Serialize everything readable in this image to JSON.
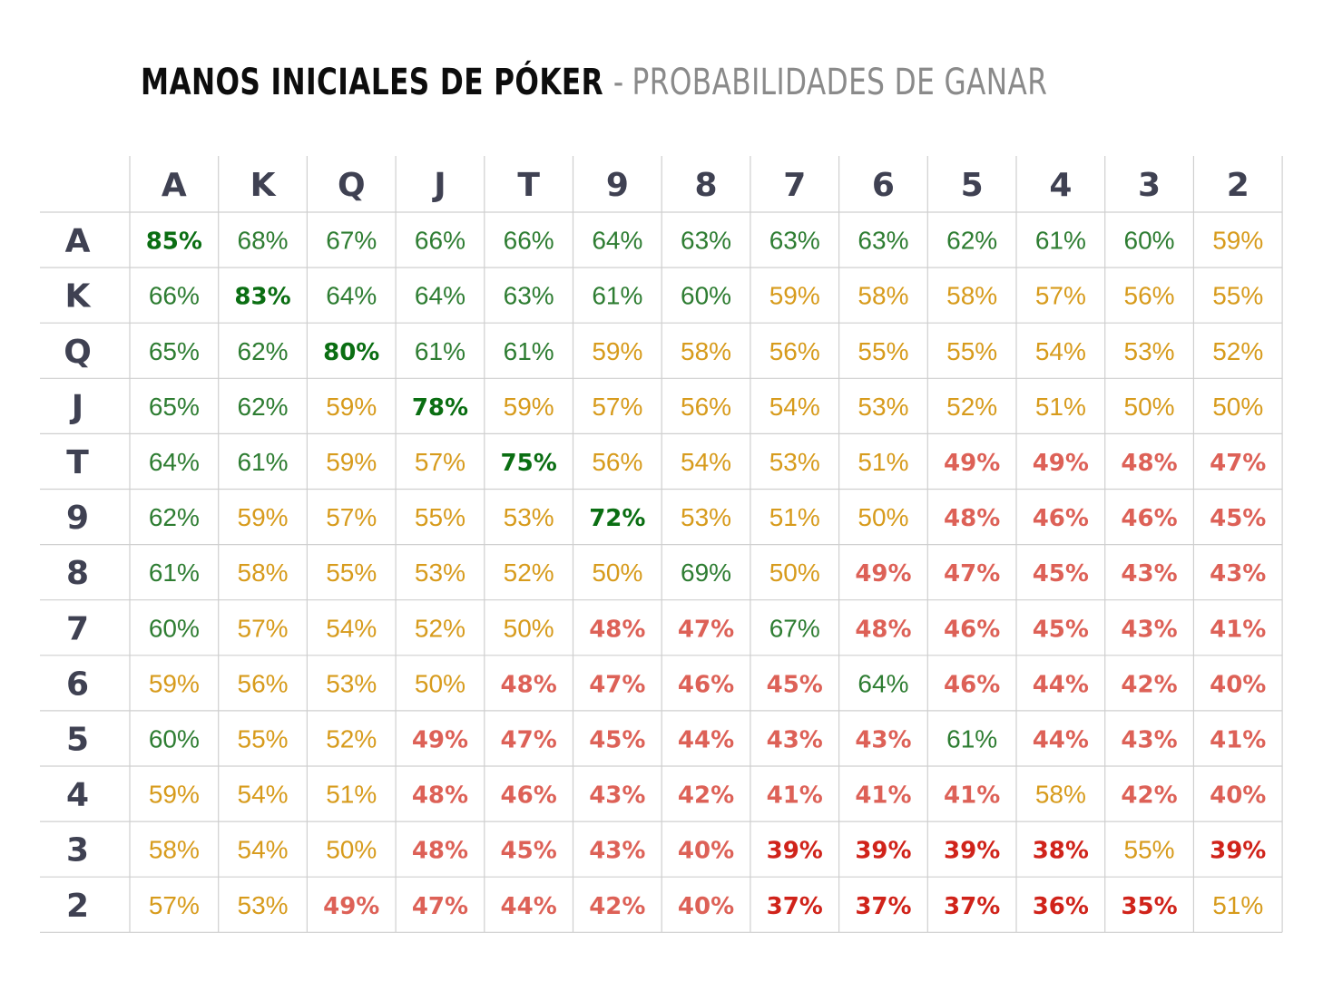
{
  "title": {
    "main": "MANOS INICIALES DE PÓKER",
    "separator": "-",
    "sub": "PROBABILIDADES DE GANAR"
  },
  "colors": {
    "header_text": "#3f4152",
    "grid": "#cfcfcf",
    "green": "#2e7d32",
    "dark_green": "#0a6e12",
    "yellow": "#d79b1c",
    "red": "#dd6157",
    "dark_red": "#d0231a"
  },
  "chart_data": {
    "type": "table",
    "columns": [
      "A",
      "K",
      "Q",
      "J",
      "T",
      "9",
      "8",
      "7",
      "6",
      "5",
      "4",
      "3",
      "2"
    ],
    "rows": [
      "A",
      "K",
      "Q",
      "J",
      "T",
      "9",
      "8",
      "7",
      "6",
      "5",
      "4",
      "3",
      "2"
    ],
    "values": [
      [
        "85%",
        "68%",
        "67%",
        "66%",
        "66%",
        "64%",
        "63%",
        "63%",
        "63%",
        "62%",
        "61%",
        "60%",
        "59%"
      ],
      [
        "66%",
        "83%",
        "64%",
        "64%",
        "63%",
        "61%",
        "60%",
        "59%",
        "58%",
        "58%",
        "57%",
        "56%",
        "55%"
      ],
      [
        "65%",
        "62%",
        "80%",
        "61%",
        "61%",
        "59%",
        "58%",
        "56%",
        "55%",
        "55%",
        "54%",
        "53%",
        "52%"
      ],
      [
        "65%",
        "62%",
        "59%",
        "78%",
        "59%",
        "57%",
        "56%",
        "54%",
        "53%",
        "52%",
        "51%",
        "50%",
        "50%"
      ],
      [
        "64%",
        "61%",
        "59%",
        "57%",
        "75%",
        "56%",
        "54%",
        "53%",
        "51%",
        "49%",
        "49%",
        "48%",
        "47%"
      ],
      [
        "62%",
        "59%",
        "57%",
        "55%",
        "53%",
        "72%",
        "53%",
        "51%",
        "50%",
        "48%",
        "46%",
        "46%",
        "45%"
      ],
      [
        "61%",
        "58%",
        "55%",
        "53%",
        "52%",
        "50%",
        "69%",
        "50%",
        "49%",
        "47%",
        "45%",
        "43%",
        "43%"
      ],
      [
        "60%",
        "57%",
        "54%",
        "52%",
        "50%",
        "48%",
        "47%",
        "67%",
        "48%",
        "46%",
        "45%",
        "43%",
        "41%"
      ],
      [
        "59%",
        "56%",
        "53%",
        "50%",
        "48%",
        "47%",
        "46%",
        "45%",
        "64%",
        "46%",
        "44%",
        "42%",
        "40%"
      ],
      [
        "60%",
        "55%",
        "52%",
        "49%",
        "47%",
        "45%",
        "44%",
        "43%",
        "43%",
        "61%",
        "44%",
        "43%",
        "41%"
      ],
      [
        "59%",
        "54%",
        "51%",
        "48%",
        "46%",
        "43%",
        "42%",
        "41%",
        "41%",
        "41%",
        "58%",
        "42%",
        "40%"
      ],
      [
        "58%",
        "54%",
        "50%",
        "48%",
        "45%",
        "43%",
        "40%",
        "39%",
        "39%",
        "39%",
        "38%",
        "55%",
        "39%"
      ],
      [
        "57%",
        "53%",
        "49%",
        "47%",
        "44%",
        "42%",
        "40%",
        "37%",
        "37%",
        "37%",
        "36%",
        "35%",
        "51%"
      ]
    ],
    "styles": [
      [
        "DG",
        "G",
        "G",
        "G",
        "G",
        "G",
        "G",
        "G",
        "G",
        "G",
        "G",
        "G",
        "Y"
      ],
      [
        "G",
        "DG",
        "G",
        "G",
        "G",
        "G",
        "G",
        "Y",
        "Y",
        "Y",
        "Y",
        "Y",
        "Y"
      ],
      [
        "G",
        "G",
        "DG",
        "G",
        "G",
        "Y",
        "Y",
        "Y",
        "Y",
        "Y",
        "Y",
        "Y",
        "Y"
      ],
      [
        "G",
        "G",
        "Y",
        "DG",
        "Y",
        "Y",
        "Y",
        "Y",
        "Y",
        "Y",
        "Y",
        "Y",
        "Y"
      ],
      [
        "G",
        "G",
        "Y",
        "Y",
        "DG",
        "Y",
        "Y",
        "Y",
        "Y",
        "R",
        "R",
        "R",
        "R"
      ],
      [
        "G",
        "Y",
        "Y",
        "Y",
        "Y",
        "DG",
        "Y",
        "Y",
        "Y",
        "R",
        "R",
        "R",
        "R"
      ],
      [
        "G",
        "Y",
        "Y",
        "Y",
        "Y",
        "Y",
        "G",
        "Y",
        "R",
        "R",
        "R",
        "R",
        "R"
      ],
      [
        "G",
        "Y",
        "Y",
        "Y",
        "Y",
        "R",
        "R",
        "G",
        "R",
        "R",
        "R",
        "R",
        "R"
      ],
      [
        "Y",
        "Y",
        "Y",
        "Y",
        "R",
        "R",
        "R",
        "R",
        "G",
        "R",
        "R",
        "R",
        "R"
      ],
      [
        "G",
        "Y",
        "Y",
        "R",
        "R",
        "R",
        "R",
        "R",
        "R",
        "G",
        "R",
        "R",
        "R"
      ],
      [
        "Y",
        "Y",
        "Y",
        "R",
        "R",
        "R",
        "R",
        "R",
        "R",
        "R",
        "Y",
        "R",
        "R"
      ],
      [
        "Y",
        "Y",
        "Y",
        "R",
        "R",
        "R",
        "R",
        "DR",
        "DR",
        "DR",
        "DR",
        "Y",
        "DR"
      ],
      [
        "Y",
        "Y",
        "R",
        "R",
        "R",
        "R",
        "R",
        "DR",
        "DR",
        "DR",
        "DR",
        "DR",
        "Y"
      ]
    ]
  }
}
